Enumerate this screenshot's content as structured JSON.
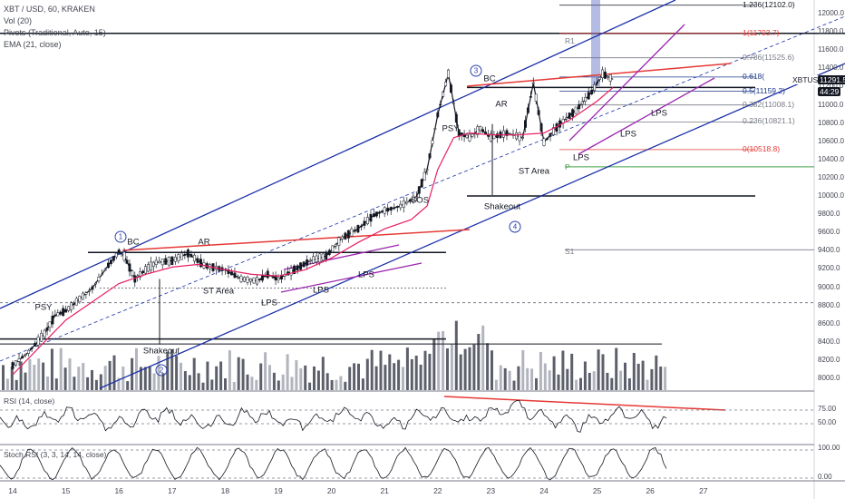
{
  "header": {
    "symbol": "XBT / USD, 60, KRAKEN",
    "vol": "Vol (20)",
    "pivots": "Pivots (Traditional, Auto, 15)",
    "ema": "EMA (21, close)"
  },
  "panes": {
    "rsi_label": "RSI (14, close)",
    "stoch_label": "Stoch RSI (3, 3, 14, 14, close)"
  },
  "price_tag": {
    "symbol": "XBTUSD",
    "price": "11291.5",
    "countdown": "44:29"
  },
  "fib_levels": [
    {
      "label": "1.236(12102.0)",
      "price": 12102.0,
      "color": "#131722"
    },
    {
      "label": "1(11793.7)",
      "price": 11793.7,
      "color": "#e53935"
    },
    {
      "label": "0.786(11525.6)",
      "price": 11525.6,
      "color": "#787b86"
    },
    {
      "label": "0.618(",
      "price": 11315,
      "color": "#1e3a8a"
    },
    {
      "label": "0.5(11159.2)",
      "price": 11159.2,
      "color": "#1e3a8a"
    },
    {
      "label": "0.382(11008.1)",
      "price": 11008.1,
      "color": "#787b86"
    },
    {
      "label": "0.236(10821.1)",
      "price": 10821.1,
      "color": "#787b86"
    },
    {
      "label": "0(10518.8)",
      "price": 10518.8,
      "color": "#e53935"
    }
  ],
  "pivots": {
    "r1": "R1",
    "p": "P",
    "s1": "S1"
  },
  "annotations": {
    "wave1": "1",
    "wave2": "2",
    "wave3": "3",
    "wave4": "4",
    "psy_left": "PSY",
    "bc_left": "BC",
    "ar_left": "AR",
    "st_area_left": "ST Area",
    "lps_left1": "LPS",
    "lps_left2": "LPS",
    "lps_left3": "LPS",
    "shakeout_left": "Shakeout",
    "sos": "SOS",
    "psy_right": "PSY",
    "bc_right": "BC",
    "ar_right": "AR",
    "st_area_right": "ST Area",
    "shakeout_right": "Shakeout",
    "lps_right1": "LPS",
    "lps_right2": "LPS",
    "lps_right3": "LPS"
  },
  "chart_data": {
    "type": "line",
    "title": "XBT / USD, 60, KRAKEN",
    "x_ticks": [
      "14",
      "15",
      "16",
      "17",
      "18",
      "19",
      "20",
      "21",
      "22",
      "23",
      "24",
      "25",
      "26",
      "27"
    ],
    "y_ticks": [
      12000,
      11800,
      11600,
      11400,
      11200,
      11000,
      10800,
      10600,
      10400,
      10200,
      10000,
      9800,
      9600,
      9400,
      9200,
      9000,
      8800,
      8600,
      8400,
      8200,
      8000
    ],
    "ylim": [
      7900,
      12150
    ],
    "price_series": {
      "name": "XBTUSD",
      "x": [
        14.0,
        14.3,
        14.6,
        14.8,
        15.0,
        15.2,
        15.5,
        15.8,
        16.0,
        16.1,
        16.3,
        16.5,
        16.7,
        17.0,
        17.3,
        17.6,
        18.0,
        18.3,
        18.6,
        18.8,
        19.0,
        19.3,
        19.6,
        19.9,
        20.2,
        20.5,
        20.8,
        21.0,
        21.3,
        21.6,
        21.8,
        22.0,
        22.2,
        22.4,
        22.6,
        22.8,
        23.0,
        23.3,
        23.6,
        23.8,
        24.0,
        24.3,
        24.6,
        24.9,
        25.1,
        25.3
      ],
      "values": [
        8150,
        8300,
        8500,
        8700,
        8750,
        8850,
        9000,
        9250,
        9400,
        9350,
        9100,
        9200,
        9280,
        9300,
        9380,
        9250,
        9200,
        9100,
        9080,
        9150,
        9100,
        9200,
        9300,
        9350,
        9550,
        9650,
        9800,
        9850,
        9900,
        10000,
        10300,
        10900,
        11350,
        10700,
        10650,
        10750,
        10650,
        10700,
        10650,
        11250,
        10600,
        10800,
        10950,
        11150,
        11350,
        11290
      ]
    },
    "ema_series": {
      "x": [
        14.0,
        14.5,
        15.0,
        15.5,
        16.0,
        16.5,
        17.0,
        17.5,
        18.0,
        18.5,
        19.0,
        19.5,
        20.0,
        20.5,
        21.0,
        21.5,
        21.8,
        22.0,
        22.3,
        22.6,
        23.0,
        23.5,
        24.0,
        24.5,
        25.0,
        25.3
      ],
      "values": [
        8050,
        8350,
        8650,
        8850,
        9050,
        9150,
        9230,
        9260,
        9200,
        9150,
        9130,
        9200,
        9330,
        9500,
        9650,
        9750,
        9900,
        10300,
        10650,
        10700,
        10680,
        10680,
        10700,
        10850,
        11050,
        11200
      ]
    },
    "volume": [
      3,
      5,
      4,
      6,
      5,
      3,
      4,
      6,
      7,
      4,
      5,
      3,
      4,
      5,
      6,
      4,
      3,
      5,
      4,
      6,
      5,
      4,
      3,
      5,
      7,
      6,
      4,
      5,
      6,
      8,
      9,
      7,
      6,
      8,
      7,
      5,
      6,
      4,
      5,
      6,
      5,
      4,
      6,
      7,
      5,
      6
    ],
    "rsi": {
      "levels": [
        75,
        50
      ],
      "labels": [
        "75.00",
        "50.00"
      ]
    },
    "stoch": {
      "levels": [
        100,
        0
      ],
      "labels": [
        "100.00",
        "0.00"
      ]
    }
  }
}
